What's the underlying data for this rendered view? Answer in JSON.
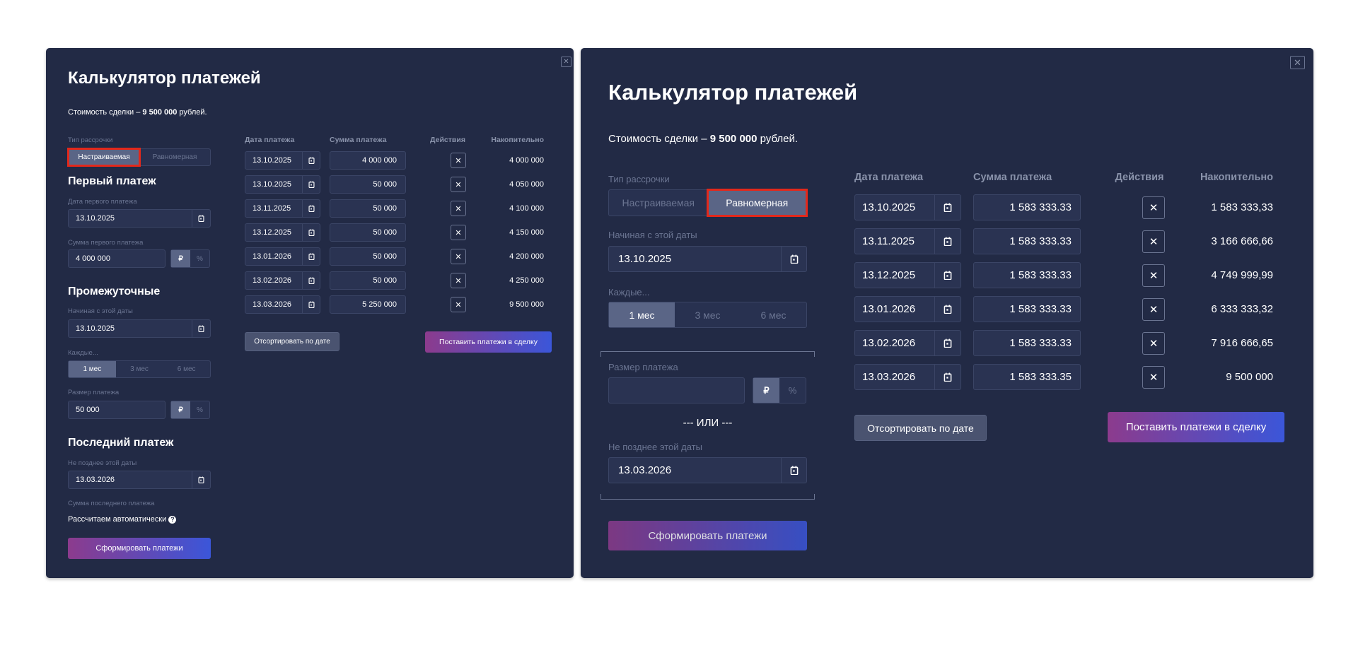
{
  "left": {
    "title": "Калькулятор платежей",
    "cost_prefix": "Стоимость сделки – ",
    "cost_value": "9 500 000",
    "cost_suffix": " рублей.",
    "type_label": "Тип рассрочки",
    "type_options": [
      "Настраиваемая",
      "Равномерная"
    ],
    "type_selected": "Настраиваемая",
    "first": {
      "heading": "Первый платеж",
      "date_label": "Дата первого платежа",
      "date": "13.10.2025",
      "sum_label": "Сумма первого платежа",
      "sum": "4 000 000"
    },
    "mid": {
      "heading": "Промежуточные",
      "start_label": "Начиная с этой даты",
      "start": "13.10.2025",
      "every_label": "Каждые...",
      "every_options": [
        "1 мес",
        "3 мес",
        "6 мес"
      ],
      "every_selected": "1 мес",
      "size_label": "Размер платежа",
      "size": "50 000"
    },
    "last": {
      "heading": "Последний платеж",
      "date_label": "Не позднее этой даты",
      "date": "13.03.2026",
      "sum_label": "Сумма последнего платежа",
      "auto_text": "Рассчитаем автоматически"
    },
    "currency": [
      "₽",
      "%"
    ],
    "generate_button": "Сформировать платежи",
    "table": {
      "headers": [
        "Дата платежа",
        "Сумма платежа",
        "Действия",
        "Накопительно"
      ],
      "rows": [
        {
          "date": "13.10.2025",
          "sum": "4 000 000",
          "cumulative": "4 000 000"
        },
        {
          "date": "13.10.2025",
          "sum": "50 000",
          "cumulative": "4 050 000"
        },
        {
          "date": "13.11.2025",
          "sum": "50 000",
          "cumulative": "4 100 000"
        },
        {
          "date": "13.12.2025",
          "sum": "50 000",
          "cumulative": "4 150 000"
        },
        {
          "date": "13.01.2026",
          "sum": "50 000",
          "cumulative": "4 200 000"
        },
        {
          "date": "13.02.2026",
          "sum": "50 000",
          "cumulative": "4 250 000"
        },
        {
          "date": "13.03.2026",
          "sum": "5 250 000",
          "cumulative": "9 500 000"
        }
      ]
    },
    "sort_button": "Отсортировать по дате",
    "post_button": "Поставить платежи в сделку"
  },
  "right": {
    "title": "Калькулятор платежей",
    "cost_prefix": "Стоимость сделки – ",
    "cost_value": "9 500 000",
    "cost_suffix": " рублей.",
    "type_label": "Тип рассрочки",
    "type_options": [
      "Настраиваемая",
      "Равномерная"
    ],
    "type_selected": "Равномерная",
    "start_label": "Начиная с этой даты",
    "start": "13.10.2025",
    "every_label": "Каждые...",
    "every_options": [
      "1 мес",
      "3 мес",
      "6 мес"
    ],
    "every_selected": "1 мес",
    "size_label": "Размер платежа",
    "size": "",
    "or_text": "--- ИЛИ ---",
    "end_label": "Не позднее этой даты",
    "end": "13.03.2026",
    "currency": [
      "₽",
      "%"
    ],
    "generate_button": "Сформировать платежи",
    "table": {
      "headers": [
        "Дата платежа",
        "Сумма платежа",
        "Действия",
        "Накопительно"
      ],
      "rows": [
        {
          "date": "13.10.2025",
          "sum": "1 583 333.33",
          "cumulative": "1 583 333,33"
        },
        {
          "date": "13.11.2025",
          "sum": "1 583 333.33",
          "cumulative": "3 166 666,66"
        },
        {
          "date": "13.12.2025",
          "sum": "1 583 333.33",
          "cumulative": "4 749 999,99"
        },
        {
          "date": "13.01.2026",
          "sum": "1 583 333.33",
          "cumulative": "6 333 333,32"
        },
        {
          "date": "13.02.2026",
          "sum": "1 583 333.33",
          "cumulative": "7 916 666,65"
        },
        {
          "date": "13.03.2026",
          "sum": "1 583 333.35",
          "cumulative": "9 500 000"
        }
      ]
    },
    "sort_button": "Отсортировать по дате",
    "post_button": "Поставить платежи в сделку"
  },
  "colors": {
    "panel": "#222a45",
    "input": "#2a3352",
    "active": "#5a6586",
    "gradient_start": "#8c3b8d",
    "gradient_end": "#3b56d9",
    "highlight": "#e3281b"
  }
}
